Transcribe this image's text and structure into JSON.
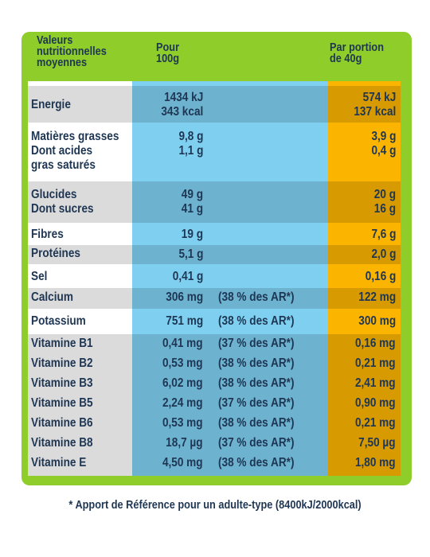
{
  "header": {
    "label": "Valeurs nutritionnelles moyennes",
    "per100": "Pour 100g",
    "perPortion": "Par portion de 40g"
  },
  "rows": [
    {
      "label": "Energie",
      "v100": "1434 kJ\n343 kcal",
      "ar": "",
      "vpor": "574 kJ\n137 kcal"
    },
    {
      "label": "Matières grasses\nDont acides\ngras saturés",
      "v100": "9,8 g\n1,1 g",
      "ar": "",
      "vpor": "3,9 g\n0,4 g"
    },
    {
      "label": "Glucides\nDont sucres",
      "v100": "49 g\n41 g",
      "ar": "",
      "vpor": "20 g\n16 g"
    },
    {
      "label": "Fibres",
      "v100": "19 g",
      "ar": "",
      "vpor": "7,6 g"
    },
    {
      "label": "Protéines",
      "v100": "5,1 g",
      "ar": "",
      "vpor": "2,0 g"
    },
    {
      "label": "Sel",
      "v100": "0,41 g",
      "ar": "",
      "vpor": "0,16 g"
    },
    {
      "label": "Calcium",
      "v100": "306 mg",
      "ar": "(38 % des AR*)",
      "vpor": "122 mg"
    },
    {
      "label": "Potassium",
      "v100": "751 mg",
      "ar": "(38 % des AR*)",
      "vpor": "300 mg"
    },
    {
      "label": "Vitamine B1",
      "v100": "0,41 mg",
      "ar": "(37 % des AR*)",
      "vpor": "0,16 mg"
    },
    {
      "label": "Vitamine B2",
      "v100": "0,53 mg",
      "ar": "(38 % des AR*)",
      "vpor": "0,21 mg"
    },
    {
      "label": "Vitamine B3",
      "v100": "6,02 mg",
      "ar": "(38 % des AR*)",
      "vpor": "2,41 mg"
    },
    {
      "label": "Vitamine B5",
      "v100": "2,24 mg",
      "ar": "(37 % des AR*)",
      "vpor": "0,90 mg"
    },
    {
      "label": "Vitamine B6",
      "v100": "0,53 mg",
      "ar": "(38 % des AR*)",
      "vpor": "0,21 mg"
    },
    {
      "label": "Vitamine B8",
      "v100": "18,7 µg",
      "ar": "(37 % des AR*)",
      "vpor": "7,50 µg"
    },
    {
      "label": "Vitamine E",
      "v100": "4,50 mg",
      "ar": "(38 % des AR*)",
      "vpor": "1,80 mg"
    }
  ],
  "footnote": "* Apport de Référence pour un adulte-type (8400kJ/2000kcal)",
  "colors": {
    "green": "#8fcd2a",
    "blue": "#7fd0f0",
    "orange": "#fbb400",
    "text": "#1e3653"
  }
}
